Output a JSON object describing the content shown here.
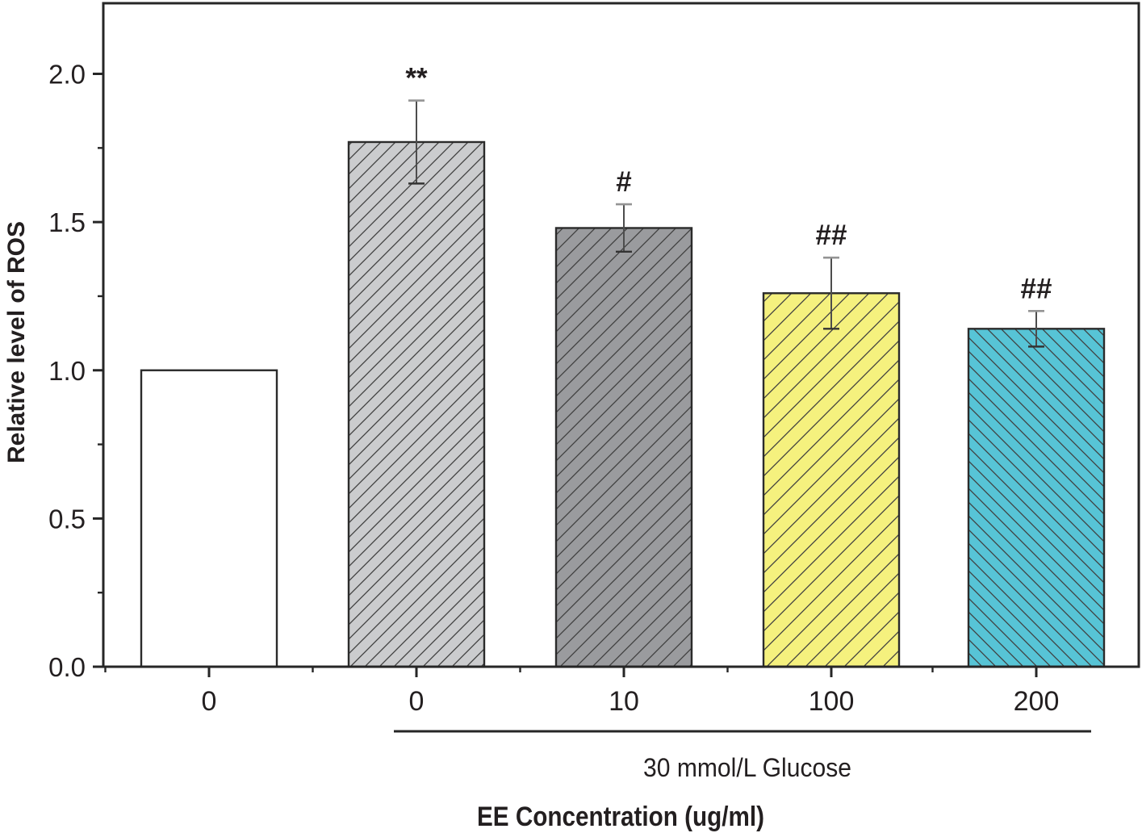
{
  "chart_data": {
    "type": "bar",
    "title": "",
    "ylabel": "Relative level of ROS",
    "xlabel": "EE Concentration (ug/ml)",
    "categories": [
      "0",
      "0",
      "10",
      "100",
      "200"
    ],
    "values": [
      1.0,
      1.77,
      1.48,
      1.26,
      1.14
    ],
    "errors": [
      0,
      0.14,
      0.08,
      0.12,
      0.06
    ],
    "significance_labels": [
      "",
      "**",
      "#",
      "##",
      "##"
    ],
    "group_bracket": {
      "label": "30 mmol/L Glucose",
      "from_category_index": 1,
      "to_category_index": 4
    },
    "ylim": [
      0,
      2.24
    ],
    "yticks": [
      0.0,
      0.5,
      1.0,
      1.5,
      2.0
    ],
    "ytick_labels": [
      "0.0",
      "0.5",
      "1.0",
      "1.5",
      "2.0"
    ],
    "yticks_minor": [
      0.25,
      0.75,
      1.25,
      1.75
    ],
    "grid": false,
    "legend": "none",
    "bar_styles": [
      {
        "fill": "#ffffff",
        "hatch": "none",
        "hatch_spacing": 0
      },
      {
        "fill": "#cbccce",
        "hatch": "forward-diagonal",
        "hatch_spacing": 18
      },
      {
        "fill": "#9a9b9e",
        "hatch": "forward-diagonal",
        "hatch_spacing": 20
      },
      {
        "fill": "#f5f17e",
        "hatch": "forward-diagonal",
        "hatch_spacing": 24
      },
      {
        "fill": "#57c4d6",
        "hatch": "back-diagonal",
        "hatch_spacing": 17
      }
    ],
    "colors": {
      "axis": "#262626",
      "text": "#231f20",
      "bar_border": "#2b2b2b",
      "hatch": "#3f3f3f",
      "error_stem": "#4d4d4d",
      "error_cap_top": "#949494",
      "error_cap_bottom": "#333333"
    }
  }
}
